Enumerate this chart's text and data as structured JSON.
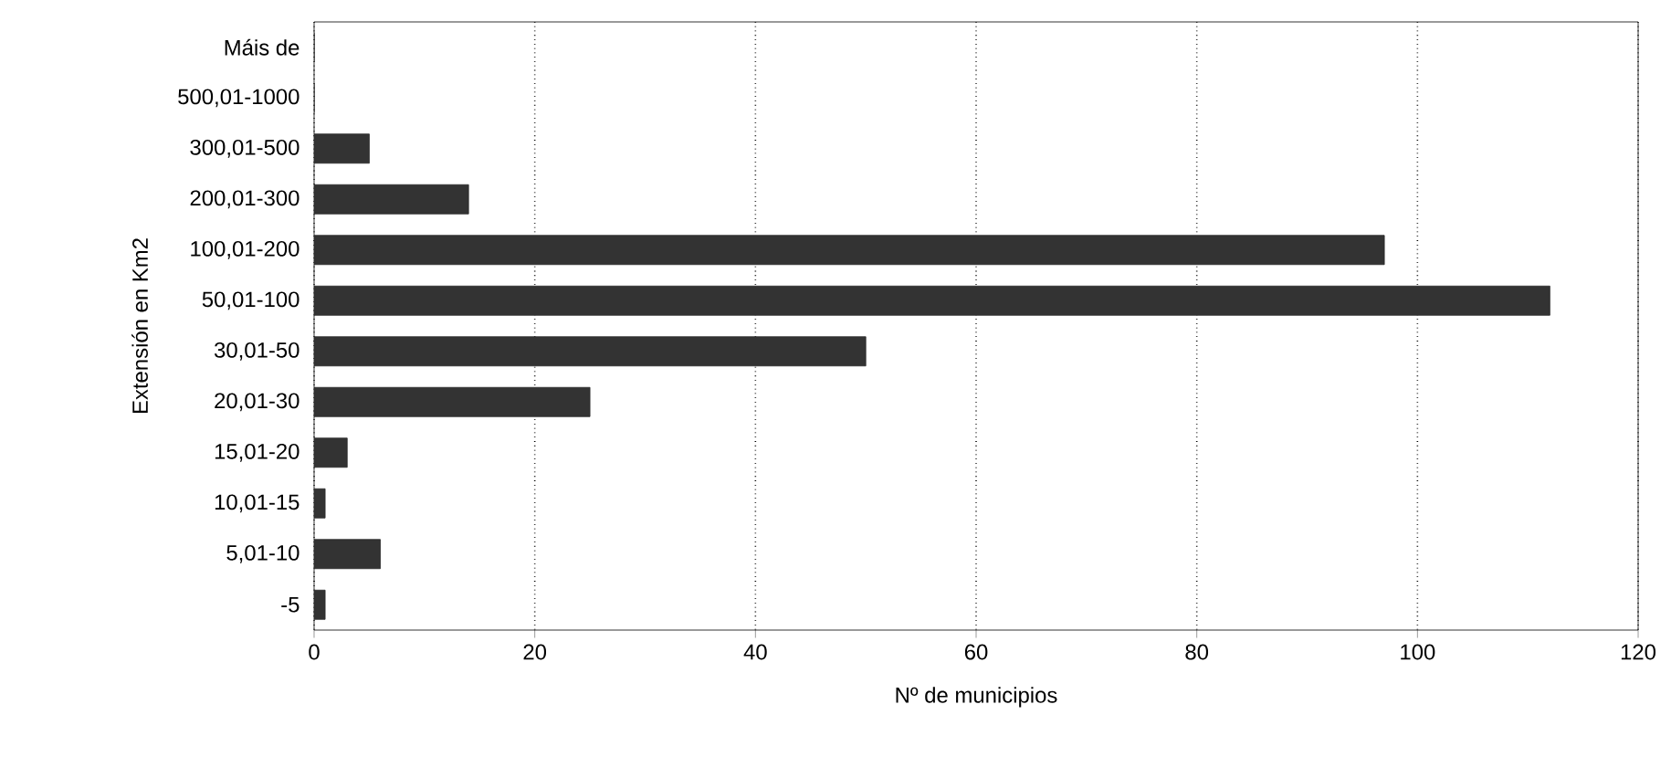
{
  "chart_data": {
    "type": "bar",
    "orientation": "horizontal",
    "xlabel": "Nº de municipios",
    "ylabel": "Extensión en Km2",
    "categories": [
      "Máis de",
      "500,01-1000",
      "300,01-500",
      "200,01-300",
      "100,01-200",
      "50,01-100",
      "30,01-50",
      "20,01-30",
      "15,01-20",
      "10,01-15",
      "5,01-10",
      "-5"
    ],
    "values": [
      0,
      0,
      5,
      14,
      97,
      112,
      50,
      25,
      3,
      1,
      6,
      1
    ],
    "color": "#333333",
    "xlim": [
      0,
      120
    ],
    "xticks": [
      0,
      20,
      40,
      60,
      80,
      100,
      120
    ],
    "grid": "x"
  }
}
